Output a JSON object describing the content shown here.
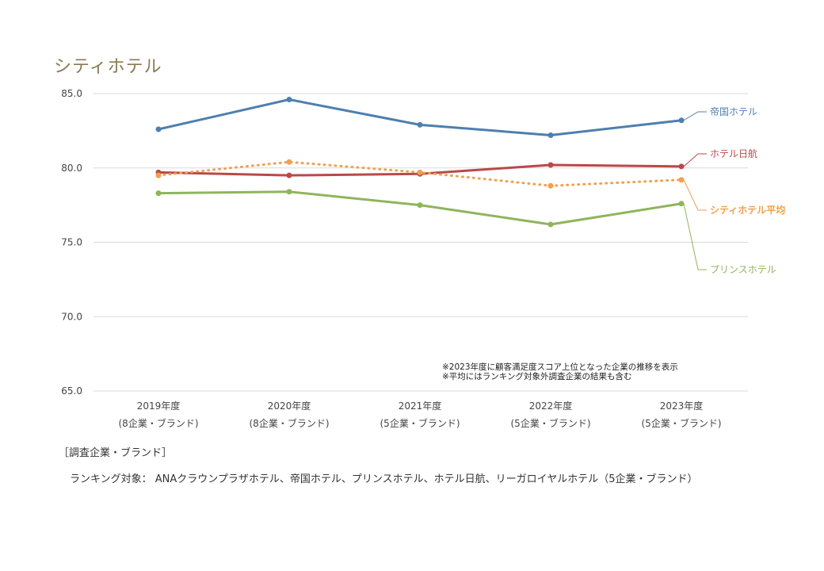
{
  "title": "シティホテル",
  "chart_data": {
    "type": "line",
    "categories": [
      "2019年度",
      "2020年度",
      "2021年度",
      "2022年度",
      "2023年度"
    ],
    "category_sublabels": [
      "(8企業・ブランド)",
      "(8企業・ブランド)",
      "(5企業・ブランド)",
      "(5企業・ブランド)",
      "(5企業・ブランド)"
    ],
    "ylim": [
      65.0,
      85.0
    ],
    "yticks": [
      "85.0",
      "80.0",
      "75.0",
      "70.0",
      "65.0"
    ],
    "series": [
      {
        "name": "帝国ホテル",
        "values": [
          82.6,
          84.6,
          82.9,
          82.2,
          83.2
        ],
        "color": "#4e7fae",
        "style": "solid",
        "bold": false
      },
      {
        "name": "ホテル日航",
        "values": [
          79.7,
          79.5,
          79.6,
          80.2,
          80.1
        ],
        "color": "#b84a48",
        "style": "solid",
        "bold": false
      },
      {
        "name": "シティホテル平均",
        "values": [
          79.5,
          80.4,
          79.7,
          78.8,
          79.2
        ],
        "color": "#f0a050",
        "style": "dotted",
        "bold": true
      },
      {
        "name": "プリンスホテル",
        "values": [
          78.3,
          78.4,
          77.5,
          76.2,
          77.6
        ],
        "color": "#8fb55c",
        "style": "solid",
        "bold": false
      }
    ],
    "annotations": [
      "※2023年度に顧客満足度スコア上位となった企業の推移を表示",
      "※平均にはランキング対象外調査企業の結果も含む"
    ]
  },
  "notes": {
    "heading": "［調査企業・ブランド］",
    "ranking_line": "ランキング対象： ANAクラウンプラザホテル、帝国ホテル、プリンスホテル、ホテル日航、リーガロイヤルホテル（5企業・ブランド）"
  }
}
